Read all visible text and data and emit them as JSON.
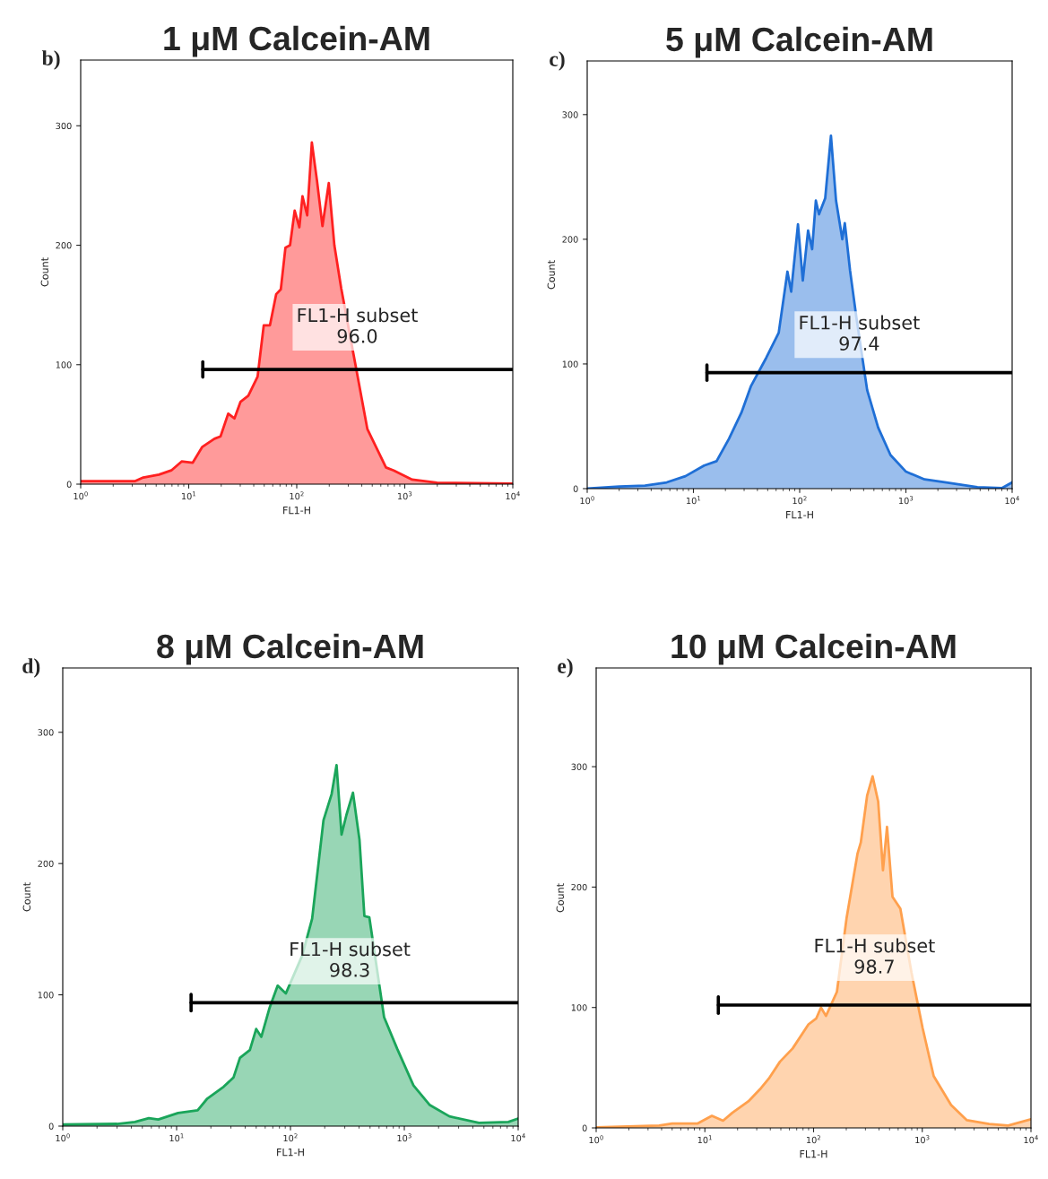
{
  "chart_data": [
    {
      "type": "area",
      "title": "1 μM Calcein-AM",
      "xlabel": "FL1-H",
      "ylabel": "Count",
      "log": "x",
      "grid": false,
      "xlim": [
        1,
        10000
      ],
      "xticks": [
        {
          "value": 1,
          "label": "10$^{0}$"
        },
        {
          "value": 10,
          "label": "10$^{1}$"
        },
        {
          "value": 100,
          "label": "10$^{2}$"
        },
        {
          "value": 1000,
          "label": "10$^{3}$"
        },
        {
          "value": 10000,
          "label": "10$^{4}$"
        }
      ],
      "ylim": [
        0,
        355
      ],
      "yticks": [
        0,
        100,
        200,
        300
      ],
      "series": [
        {
          "color": "#ff2020",
          "x": [
            1,
            3.2,
            3.8,
            5.3,
            6.9,
            8.6,
            10.9,
            13.3,
            17.3,
            19.7,
            23.2,
            26.5,
            30.2,
            35.6,
            43.4,
            49.5,
            56.5,
            64.5,
            71.2,
            78.6,
            86.7,
            95.7,
            105.7,
            113,
            125,
            138,
            154,
            173,
            198,
            223,
            258,
            358,
            451,
            670,
            790,
            1172,
            1987,
            10000
          ],
          "values": [
            2.6,
            2.6,
            5.6,
            8,
            11.5,
            19,
            18,
            31,
            38,
            40,
            59,
            55,
            69,
            74,
            90,
            133,
            133,
            159,
            163,
            198,
            200,
            229,
            215,
            241,
            225,
            286,
            254,
            216,
            252,
            200,
            164,
            95,
            46,
            14,
            11.5,
            3.8,
            1.3,
            0.5
          ]
        },
        {
          "type": "line",
          "color": "#000000",
          "x": [
            13.5,
            10000
          ],
          "values": [
            96,
            96
          ]
        }
      ],
      "annotations": [
        "b)",
        "FL1-H subset\n96.0"
      ]
    },
    {
      "type": "area",
      "title": "5 μM Calcein-AM",
      "xlabel": "FL1-H",
      "ylabel": "Count",
      "log": "x",
      "grid": false,
      "xlim": [
        1,
        10000
      ],
      "xticks": [
        {
          "value": 1,
          "label": "10$^{0}$"
        },
        {
          "value": 10,
          "label": "10$^{1}$"
        },
        {
          "value": 100,
          "label": "10$^{2}$"
        },
        {
          "value": 1000,
          "label": "10$^{3}$"
        },
        {
          "value": 10000,
          "label": "10$^{4}$"
        }
      ],
      "ylim": [
        0,
        343
      ],
      "yticks": [
        0,
        100,
        200,
        300
      ],
      "series": [
        {
          "color": "#1f6fd6",
          "x": [
            1,
            2.0,
            3.5,
            5.6,
            8.4,
            12.6,
            16.5,
            21.6,
            28.3,
            34.7,
            48.5,
            63.5,
            76.7,
            83.2,
            96.4,
            107,
            120,
            131,
            142,
            152,
            174,
            197,
            220,
            252,
            266,
            298,
            341,
            432,
            548,
            716,
            1002,
            1500,
            2400,
            4710,
            8060,
            10000
          ],
          "values": [
            0,
            1.7,
            2.5,
            5,
            10,
            18.5,
            22,
            40,
            61,
            82,
            105,
            125,
            174,
            158,
            212,
            167,
            207,
            192,
            231,
            220,
            233,
            283,
            231,
            200,
            213,
            175,
            138,
            79,
            49,
            27,
            13.6,
            7.4,
            4.9,
            1.2,
            0.5,
            5
          ]
        },
        {
          "type": "line",
          "color": "#000000",
          "x": [
            13.4,
            10000
          ],
          "values": [
            93,
            93
          ]
        }
      ],
      "annotations": [
        "c)",
        "FL1-H subset\n97.4"
      ]
    },
    {
      "type": "area",
      "title": "8 μM Calcein-AM",
      "xlabel": "FL1-H",
      "ylabel": "Count",
      "log": "x",
      "grid": false,
      "xlim": [
        1,
        10000
      ],
      "xticks": [
        {
          "value": 1,
          "label": "10$^{0}$"
        },
        {
          "value": 10,
          "label": "10$^{1}$"
        },
        {
          "value": 100,
          "label": "10$^{2}$"
        },
        {
          "value": 1000,
          "label": "10$^{3}$"
        },
        {
          "value": 10000,
          "label": "10$^{4}$"
        }
      ],
      "ylim": [
        0,
        349
      ],
      "yticks": [
        0,
        100,
        200,
        300
      ],
      "series": [
        {
          "color": "#1aa55a",
          "x": [
            1,
            3.0,
            4.3,
            5.7,
            6.9,
            10.3,
            15.3,
            18.6,
            25.9,
            31.6,
            36,
            44,
            50,
            55.5,
            65.5,
            77.2,
            91,
            127,
            155,
            195,
            230,
            254,
            281,
            310,
            354,
            404,
            446,
            493,
            664,
            865,
            1203,
            1675,
            2490,
            4520,
            8200,
            10000
          ],
          "values": [
            1.2,
            1.7,
            3.2,
            6,
            5,
            10,
            12,
            21,
            30,
            37,
            52,
            58,
            74,
            68,
            90,
            107,
            101,
            130,
            158,
            233,
            253,
            275,
            222,
            237,
            254,
            218,
            160,
            159,
            83,
            59,
            31,
            16,
            7.4,
            2.5,
            3.2,
            5.7
          ]
        },
        {
          "type": "line",
          "color": "#000000",
          "x": [
            13.4,
            10000
          ],
          "values": [
            94,
            94
          ]
        }
      ],
      "annotations": [
        "d)",
        "FL1-H subset\n98.3"
      ]
    },
    {
      "type": "area",
      "title": "10 μM Calcein-AM",
      "xlabel": "FL1-H",
      "ylabel": "Count",
      "log": "x",
      "grid": false,
      "xlim": [
        1,
        10000
      ],
      "xticks": [
        {
          "value": 1,
          "label": "10$^{0}$"
        },
        {
          "value": 10,
          "label": "10$^{1}$"
        },
        {
          "value": 100,
          "label": "10$^{2}$"
        },
        {
          "value": 1000,
          "label": "10$^{3}$"
        },
        {
          "value": 10000,
          "label": "10$^{4}$"
        }
      ],
      "ylim": [
        0,
        382
      ],
      "yticks": [
        0,
        100,
        200,
        300
      ],
      "series": [
        {
          "color": "#ffa04d",
          "x": [
            1,
            3.8,
            5.0,
            8.6,
            11.6,
            14.7,
            17.9,
            25.1,
            32.8,
            38.8,
            49.1,
            64.2,
            89.8,
            106,
            117,
            130,
            164,
            201,
            254,
            272,
            311,
            349,
            393,
            435,
            474,
            532,
            629,
            796,
            1007,
            1274,
            1842,
            2575,
            4120,
            6170,
            10000
          ],
          "values": [
            0.5,
            1.9,
            3.7,
            3.7,
            10,
            6,
            12.6,
            22,
            33,
            41,
            55,
            66,
            86,
            91,
            100,
            93,
            113,
            174,
            228,
            237,
            276,
            292,
            271,
            214,
            250,
            192,
            182,
            129,
            83,
            43,
            19,
            6.4,
            3.2,
            1.9,
            7.2
          ]
        },
        {
          "type": "line",
          "color": "#000000",
          "x": [
            13.3,
            10000
          ],
          "values": [
            102,
            102
          ]
        }
      ],
      "annotations": [
        "e)",
        "FL1-H subset\n98.7"
      ]
    }
  ]
}
